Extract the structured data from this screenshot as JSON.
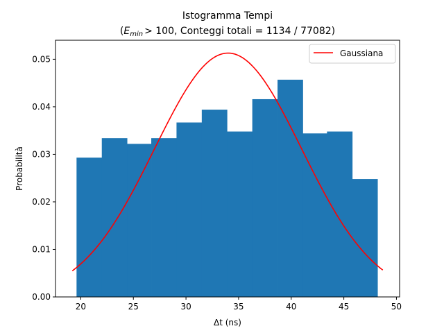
{
  "chart_data": {
    "type": "bar",
    "title": "Istogramma Tempi",
    "subtitle": {
      "open": "(",
      "e_symbol": "E",
      "e_subscript": "min",
      "threshold": "> 100",
      "counts": ", Conteggi totali = 1134 / 77082)"
    },
    "xlabel": "Δt (ns)",
    "ylabel": "Probabilità",
    "xlim": [
      17.6,
      50.3
    ],
    "ylim": [
      0.0,
      0.054
    ],
    "x_ticks": [
      20,
      25,
      30,
      35,
      40,
      45,
      50
    ],
    "x_tick_labels": [
      "20",
      "25",
      "30",
      "35",
      "40",
      "45",
      "50"
    ],
    "y_ticks": [
      0.0,
      0.01,
      0.02,
      0.03,
      0.04,
      0.05
    ],
    "y_tick_labels": [
      "0.00",
      "0.01",
      "0.02",
      "0.03",
      "0.04",
      "0.05"
    ],
    "histogram": {
      "bin_edges": [
        19.6,
        22.0,
        24.4,
        26.7,
        29.1,
        31.5,
        33.9,
        36.3,
        38.7,
        41.1,
        43.4,
        45.8,
        48.2
      ],
      "values": [
        0.0293,
        0.0334,
        0.0322,
        0.0334,
        0.0367,
        0.0394,
        0.0348,
        0.0416,
        0.0457,
        0.0344,
        0.0348,
        0.0248
      ],
      "color": "#1f77b4"
    },
    "series": [
      {
        "name": "Gaussiana",
        "type": "line",
        "color": "#ff0000",
        "mean": 34.0,
        "sigma": 7.0,
        "peak": 0.0513,
        "x_range": [
          19.2,
          48.7
        ]
      }
    ],
    "legend": {
      "position": "top-right"
    },
    "grid": false
  }
}
